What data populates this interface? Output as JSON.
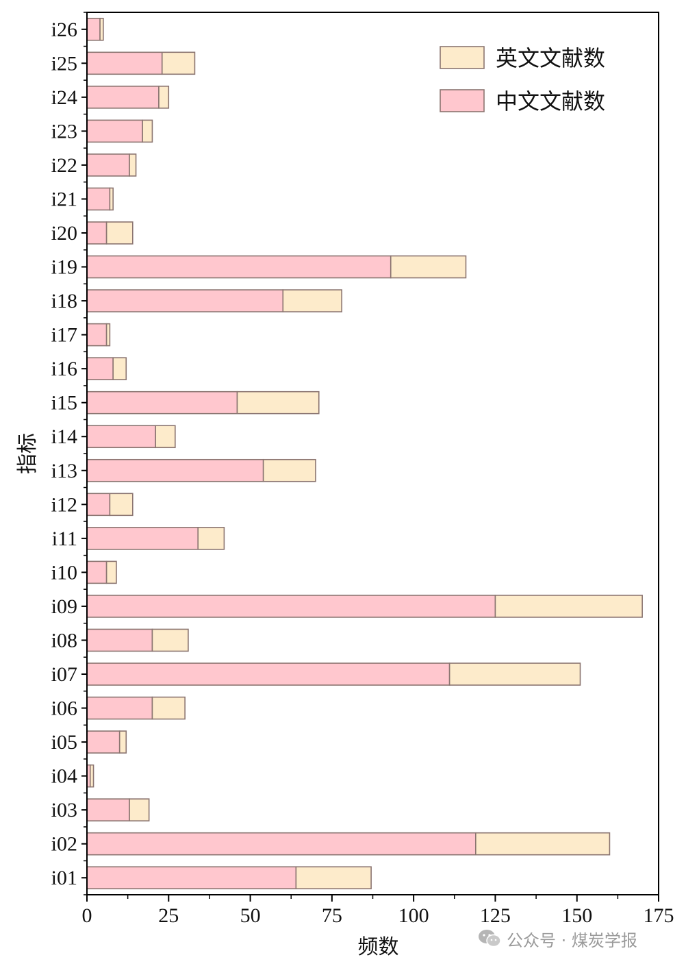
{
  "chart_data": {
    "type": "bar",
    "orientation": "horizontal",
    "stacked": true,
    "categories": [
      "i01",
      "i02",
      "i03",
      "i04",
      "i05",
      "i06",
      "i07",
      "i08",
      "i09",
      "i10",
      "i11",
      "i12",
      "i13",
      "i14",
      "i15",
      "i16",
      "i17",
      "i18",
      "i19",
      "i20",
      "i21",
      "i22",
      "i23",
      "i24",
      "i25",
      "i26"
    ],
    "series": [
      {
        "name": "中文文献数",
        "color": "#FFC7CE",
        "values": [
          64,
          119,
          13,
          1,
          10,
          20,
          111,
          20,
          125,
          6,
          34,
          7,
          54,
          21,
          46,
          8,
          6,
          60,
          93,
          6,
          7,
          13,
          17,
          22,
          23,
          4
        ]
      },
      {
        "name": "英文文献数",
        "color": "#FDEBCB",
        "values": [
          23,
          41,
          6,
          1,
          2,
          10,
          40,
          11,
          45,
          3,
          8,
          7,
          16,
          6,
          25,
          4,
          1,
          18,
          23,
          8,
          1,
          2,
          3,
          3,
          10,
          1
        ]
      }
    ],
    "xlabel": "频数",
    "ylabel": "指标",
    "xlim": [
      0,
      175
    ],
    "xticks": [
      0,
      25,
      50,
      75,
      100,
      125,
      150,
      175
    ],
    "grid": false,
    "legend": {
      "position": "top-right",
      "order": [
        "英文文献数",
        "中文文献数"
      ]
    },
    "title": ""
  },
  "watermark": {
    "text": "公众号 · 煤炭学报",
    "icon": "wechat-icon"
  }
}
